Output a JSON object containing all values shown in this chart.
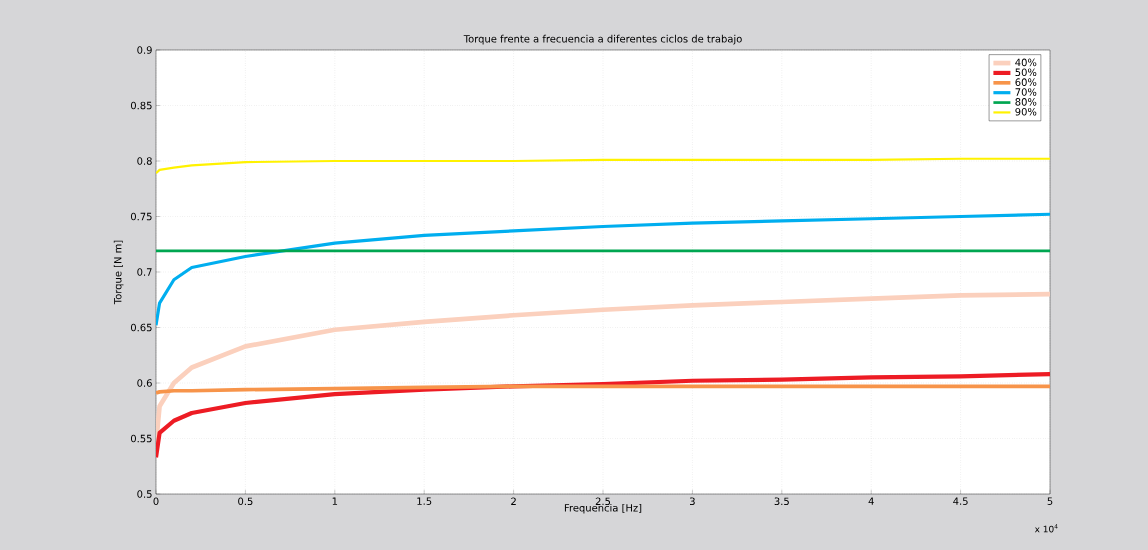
{
  "chart_data": {
    "type": "line",
    "title": "Torque frente a frecuencia a diferentes ciclos de trabajo",
    "xlabel": "Frequencia [Hz]",
    "ylabel": "Torque [N m]",
    "annotations": [
      "x 10$^{4}$"
    ],
    "xlim": [
      0,
      5
    ],
    "ylim": [
      0.5,
      0.9
    ],
    "xticks": [
      0,
      0.5,
      1,
      1.5,
      2,
      2.5,
      3,
      3.5,
      4,
      4.5,
      5
    ],
    "yticks": [
      0.5,
      0.55,
      0.6,
      0.65,
      0.7,
      0.75,
      0.8,
      0.85,
      0.9
    ],
    "grid": true,
    "legend": "top right",
    "marker": "none",
    "line_style": "solid",
    "x": [
      0,
      0.02,
      0.1,
      0.2,
      0.5,
      1,
      1.5,
      2,
      2.5,
      3,
      3.5,
      4,
      4.5,
      5
    ],
    "series": [
      {
        "name": "40%",
        "color": "#fbd0bd",
        "values": [
          0.545,
          0.579,
          0.6,
          0.614,
          0.633,
          0.648,
          0.655,
          0.661,
          0.666,
          0.67,
          0.673,
          0.676,
          0.679,
          0.68
        ]
      },
      {
        "name": "50%",
        "color": "#ed1c24",
        "values": [
          0.533,
          0.555,
          0.566,
          0.573,
          0.582,
          0.59,
          0.594,
          0.597,
          0.599,
          0.602,
          0.603,
          0.605,
          0.606,
          0.608
        ]
      },
      {
        "name": "60%",
        "color": "#f7944a",
        "values": [
          0.591,
          0.592,
          0.593,
          0.593,
          0.594,
          0.595,
          0.596,
          0.597,
          0.597,
          0.597,
          0.597,
          0.597,
          0.597,
          0.597
        ]
      },
      {
        "name": "70%",
        "color": "#00aeef",
        "values": [
          0.652,
          0.672,
          0.693,
          0.704,
          0.714,
          0.726,
          0.733,
          0.737,
          0.741,
          0.744,
          0.746,
          0.748,
          0.75,
          0.752
        ]
      },
      {
        "name": "80%",
        "color": "#00a651",
        "values": [
          0.719,
          0.719,
          0.719,
          0.719,
          0.719,
          0.719,
          0.719,
          0.719,
          0.719,
          0.719,
          0.719,
          0.719,
          0.719,
          0.719
        ]
      },
      {
        "name": "90%",
        "color": "#fff200",
        "values": [
          0.789,
          0.792,
          0.794,
          0.796,
          0.799,
          0.8,
          0.8,
          0.8,
          0.801,
          0.801,
          0.801,
          0.801,
          0.802,
          0.802
        ]
      }
    ]
  }
}
